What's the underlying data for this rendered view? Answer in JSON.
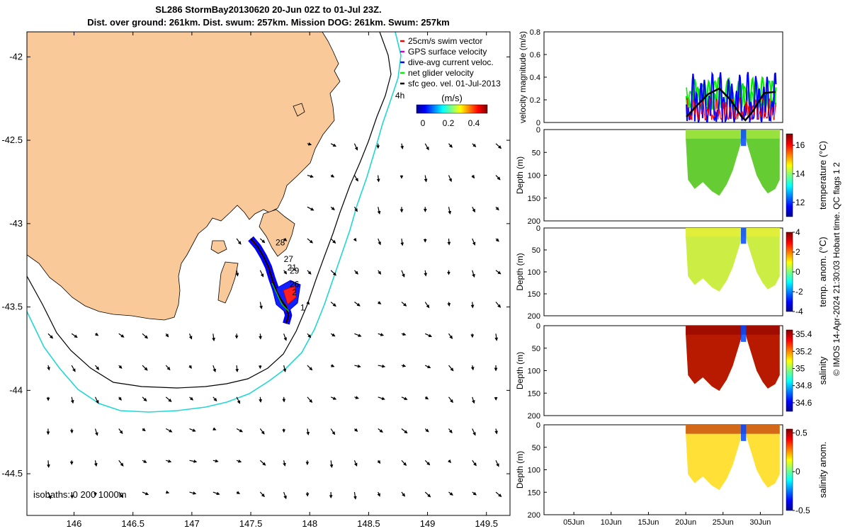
{
  "chart_data": [
    {
      "type": "map",
      "title": "SL286 StormBay20130620 20-Jun 02Z to 01-Jul 23Z.",
      "subtitle": "Dist. over ground: 261km. Dist. swum: 257km. Mission DOG: 261km. Swum: 257km",
      "xlabel": "",
      "ylabel": "",
      "xlim": [
        145.6,
        149.7
      ],
      "ylim": [
        -44.75,
        -41.85
      ],
      "x_ticks": [
        "146",
        "146.5",
        "147",
        "147.5",
        "148",
        "148.5",
        "149",
        "149.5"
      ],
      "y_ticks": [
        "-42",
        "-42.5",
        "-43",
        "-43.5",
        "-44",
        "-44.5"
      ],
      "legend": [
        "25cm/s swim vector",
        "GPS surface velocity",
        "dive-avg current veloc.",
        "net glider velocity",
        "sfc geo. vel. 01-Jul-2013"
      ],
      "legend_colors": [
        "#ff0000",
        "#cc00cc",
        "#0000ff",
        "#00ee00",
        "#000000"
      ],
      "colorbar_label": "(m/s)",
      "colorbar_ticks": [
        "0",
        "0.2",
        "0.4"
      ],
      "colorbar_range": [
        0,
        0.55
      ],
      "annotation_4h": "4h",
      "isobath_label": "isobaths: 0   200  1000m",
      "day_labels": [
        {
          "text": "28",
          "lon": 147.71,
          "lat": -43.13
        },
        {
          "text": "27",
          "lon": 147.78,
          "lat": -43.23
        },
        {
          "text": "21",
          "lon": 147.81,
          "lat": -43.28
        },
        {
          "text": "29",
          "lon": 147.83,
          "lat": -43.3
        },
        {
          "text": "26",
          "lon": 147.83,
          "lat": -43.38
        },
        {
          "text": "2",
          "lon": 147.85,
          "lat": -43.43
        },
        {
          "text": "1",
          "lon": 147.92,
          "lat": -43.52
        }
      ],
      "track": [
        [
          147.5,
          -43.09
        ],
        [
          147.56,
          -43.14
        ],
        [
          147.61,
          -43.2
        ],
        [
          147.65,
          -43.26
        ],
        [
          147.68,
          -43.33
        ],
        [
          147.72,
          -43.41
        ],
        [
          147.76,
          -43.46
        ],
        [
          147.8,
          -43.5
        ],
        [
          147.82,
          -43.55
        ],
        [
          147.8,
          -43.6
        ]
      ],
      "colors": {
        "land": "#fac99a",
        "isobath_200": "#000000",
        "isobath_1000": "#22d6d6"
      }
    },
    {
      "type": "line",
      "ylabel": "velocity magnitude (m/s)",
      "ylim": [
        0,
        0.8
      ],
      "y_ticks": [
        "0",
        "0.2",
        "0.4",
        "0.6",
        "0.8"
      ],
      "series": [
        {
          "name": "net glider velocity",
          "color": "#00ee00"
        },
        {
          "name": "dive-avg current veloc.",
          "color": "#0000ff"
        },
        {
          "name": "sfc geo. vel.",
          "color": "#000000"
        },
        {
          "name": "swim",
          "color": "#ff0000"
        }
      ],
      "smooth_black": [
        [
          20.1,
          0.05
        ],
        [
          21.5,
          0.15
        ],
        [
          23,
          0.25
        ],
        [
          24.5,
          0.3
        ],
        [
          26,
          0.2
        ],
        [
          27.5,
          0.05
        ],
        [
          28,
          0.02
        ],
        [
          29,
          0.1
        ],
        [
          30.5,
          0.26
        ],
        [
          32,
          0.27
        ]
      ]
    },
    {
      "type": "heatmap",
      "ylabel": "Depth (m)",
      "ylim": [
        200,
        0
      ],
      "y_ticks": [
        "0",
        "50",
        "100",
        "150",
        "200"
      ],
      "colorbar_label": "temperature (°C)",
      "colorbar_ticks": [
        "12",
        "14",
        "16"
      ],
      "colorbar_range": [
        11,
        16.8
      ]
    },
    {
      "type": "heatmap",
      "ylabel": "Depth (m)",
      "ylim": [
        200,
        0
      ],
      "y_ticks": [
        "0",
        "50",
        "100",
        "150",
        "200"
      ],
      "colorbar_label": "temp. anom. (°C)",
      "colorbar_ticks": [
        "-4",
        "-2",
        "0",
        "2",
        "4"
      ],
      "colorbar_range": [
        -4,
        4
      ]
    },
    {
      "type": "heatmap",
      "ylabel": "Depth (m)",
      "ylim": [
        200,
        0
      ],
      "y_ticks": [
        "0",
        "50",
        "100",
        "150",
        "200"
      ],
      "colorbar_label": "salinity",
      "colorbar_ticks": [
        "34.6",
        "34.8",
        "35",
        "35.2",
        "35.4"
      ],
      "colorbar_range": [
        34.5,
        35.45
      ]
    },
    {
      "type": "heatmap",
      "ylabel": "Depth (m)",
      "ylim": [
        200,
        0
      ],
      "y_ticks": [
        "0",
        "50",
        "100",
        "150",
        "200"
      ],
      "colorbar_label": "salinity anom.",
      "colorbar_ticks": [
        "-0.5",
        "0",
        "0.5"
      ],
      "colorbar_range": [
        -0.5,
        0.55
      ],
      "x_ticks": [
        "05Jun",
        "10Jun",
        "15Jun",
        "20Jun",
        "25Jun",
        "30Jun"
      ],
      "xlim": [
        1,
        33
      ]
    }
  ],
  "footer": "© IMOS 14-Apr-2024 21:30:03 Hobart time. QC flags 1  2"
}
